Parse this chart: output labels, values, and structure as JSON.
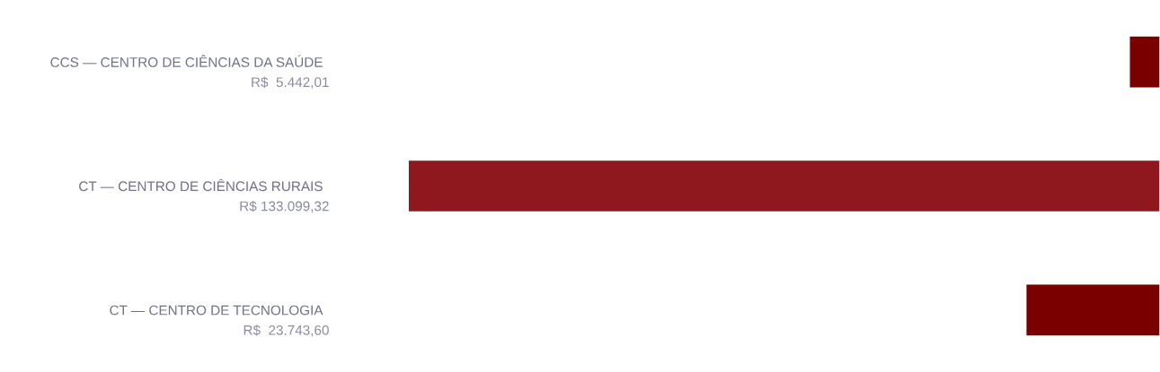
{
  "chart_data": {
    "type": "bar",
    "orientation": "horizontal",
    "categories": [
      "CCS — CENTRO DE CIÊNCIAS DA SAÚDE",
      "CT — CENTRO DE CIÊNCIAS RURAIS",
      "CT — CENTRO DE TECNOLOGIA"
    ],
    "values": [
      5442.01,
      133099.32,
      23743.6
    ],
    "value_labels": [
      "R$  5.442,01",
      "R$ 133.099,32",
      "R$  23.743,60"
    ],
    "colors": [
      "#7a0000",
      "#8e181e",
      "#7a0000"
    ]
  }
}
